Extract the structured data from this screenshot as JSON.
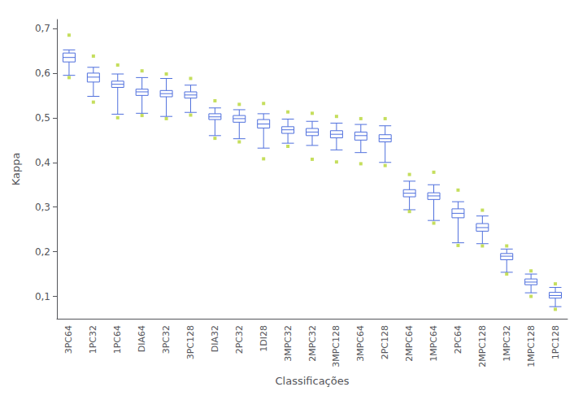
{
  "chart_data": {
    "type": "box",
    "xlabel": "Classificações",
    "ylabel": "Kappa",
    "categories": [
      "3PC64",
      "1PC32",
      "1PC64",
      "DIA64",
      "3PC32",
      "3PC128",
      "DIA32",
      "2PC32",
      "1DI28",
      "3MPC32",
      "2MPC32",
      "3MPC128",
      "3MPC64",
      "2PC128",
      "2MPC64",
      "1MPC64",
      "2PC64",
      "2MPC128",
      "1MPC32",
      "1MPC128",
      "1PC128"
    ],
    "boxes": [
      {
        "q1": 0.625,
        "median": 0.635,
        "q3": 0.645,
        "whislo": 0.595,
        "whishi": 0.652,
        "fliers_low": [
          0.59
        ],
        "fliers_high": [
          0.685
        ]
      },
      {
        "q1": 0.58,
        "median": 0.591,
        "q3": 0.6,
        "whislo": 0.548,
        "whishi": 0.613,
        "fliers_low": [
          0.535
        ],
        "fliers_high": [
          0.638
        ]
      },
      {
        "q1": 0.568,
        "median": 0.575,
        "q3": 0.582,
        "whislo": 0.508,
        "whishi": 0.598,
        "fliers_low": [
          0.5
        ],
        "fliers_high": [
          0.618
        ]
      },
      {
        "q1": 0.55,
        "median": 0.558,
        "q3": 0.564,
        "whislo": 0.51,
        "whishi": 0.59,
        "fliers_low": [
          0.505
        ],
        "fliers_high": [
          0.605
        ]
      },
      {
        "q1": 0.547,
        "median": 0.554,
        "q3": 0.561,
        "whislo": 0.503,
        "whishi": 0.588,
        "fliers_low": [
          0.498
        ],
        "fliers_high": [
          0.598
        ]
      },
      {
        "q1": 0.544,
        "median": 0.551,
        "q3": 0.558,
        "whislo": 0.512,
        "whishi": 0.573,
        "fliers_low": [
          0.506
        ],
        "fliers_high": [
          0.588
        ]
      },
      {
        "q1": 0.496,
        "median": 0.502,
        "q3": 0.509,
        "whislo": 0.46,
        "whishi": 0.522,
        "fliers_low": [
          0.454
        ],
        "fliers_high": [
          0.538
        ]
      },
      {
        "q1": 0.49,
        "median": 0.498,
        "q3": 0.505,
        "whislo": 0.453,
        "whishi": 0.518,
        "fliers_low": [
          0.446
        ],
        "fliers_high": [
          0.53
        ]
      },
      {
        "q1": 0.477,
        "median": 0.486,
        "q3": 0.496,
        "whislo": 0.432,
        "whishi": 0.509,
        "fliers_low": [
          0.408
        ],
        "fliers_high": [
          0.532
        ]
      },
      {
        "q1": 0.465,
        "median": 0.473,
        "q3": 0.48,
        "whislo": 0.443,
        "whishi": 0.497,
        "fliers_low": [
          0.436
        ],
        "fliers_high": [
          0.513
        ]
      },
      {
        "q1": 0.46,
        "median": 0.468,
        "q3": 0.476,
        "whislo": 0.438,
        "whishi": 0.492,
        "fliers_low": [
          0.407
        ],
        "fliers_high": [
          0.51
        ]
      },
      {
        "q1": 0.455,
        "median": 0.463,
        "q3": 0.471,
        "whislo": 0.428,
        "whishi": 0.488,
        "fliers_low": [
          0.401
        ],
        "fliers_high": [
          0.503
        ]
      },
      {
        "q1": 0.45,
        "median": 0.46,
        "q3": 0.468,
        "whislo": 0.422,
        "whishi": 0.485,
        "fliers_low": [
          0.397
        ],
        "fliers_high": [
          0.498
        ]
      },
      {
        "q1": 0.446,
        "median": 0.453,
        "q3": 0.462,
        "whislo": 0.4,
        "whishi": 0.482,
        "fliers_low": [
          0.393
        ],
        "fliers_high": [
          0.498
        ]
      },
      {
        "q1": 0.323,
        "median": 0.331,
        "q3": 0.339,
        "whislo": 0.294,
        "whishi": 0.358,
        "fliers_low": [
          0.29
        ],
        "fliers_high": [
          0.373
        ]
      },
      {
        "q1": 0.317,
        "median": 0.325,
        "q3": 0.332,
        "whislo": 0.27,
        "whishi": 0.35,
        "fliers_low": [
          0.264
        ],
        "fliers_high": [
          0.378
        ]
      },
      {
        "q1": 0.276,
        "median": 0.286,
        "q3": 0.296,
        "whislo": 0.22,
        "whishi": 0.312,
        "fliers_low": [
          0.214
        ],
        "fliers_high": [
          0.338
        ]
      },
      {
        "q1": 0.246,
        "median": 0.254,
        "q3": 0.263,
        "whislo": 0.218,
        "whishi": 0.28,
        "fliers_low": [
          0.213
        ],
        "fliers_high": [
          0.293
        ]
      },
      {
        "q1": 0.182,
        "median": 0.19,
        "q3": 0.196,
        "whislo": 0.154,
        "whishi": 0.206,
        "fliers_low": [
          0.15
        ],
        "fliers_high": [
          0.213
        ]
      },
      {
        "q1": 0.126,
        "median": 0.132,
        "q3": 0.139,
        "whislo": 0.108,
        "whishi": 0.15,
        "fliers_low": [
          0.1
        ],
        "fliers_high": [
          0.157
        ]
      },
      {
        "q1": 0.096,
        "median": 0.102,
        "q3": 0.109,
        "whislo": 0.077,
        "whishi": 0.12,
        "fliers_low": [
          0.071
        ],
        "fliers_high": [
          0.128
        ]
      }
    ],
    "ylim": [
      0.05,
      0.72
    ],
    "yticks": [
      {
        "value": 0.1,
        "label": "0,1"
      },
      {
        "value": 0.2,
        "label": "0,2"
      },
      {
        "value": 0.3,
        "label": "0,3"
      },
      {
        "value": 0.4,
        "label": "0,4"
      },
      {
        "value": 0.5,
        "label": "0,5"
      },
      {
        "value": 0.6,
        "label": "0,6"
      },
      {
        "value": 0.7,
        "label": "0,7"
      }
    ],
    "grid": false
  }
}
